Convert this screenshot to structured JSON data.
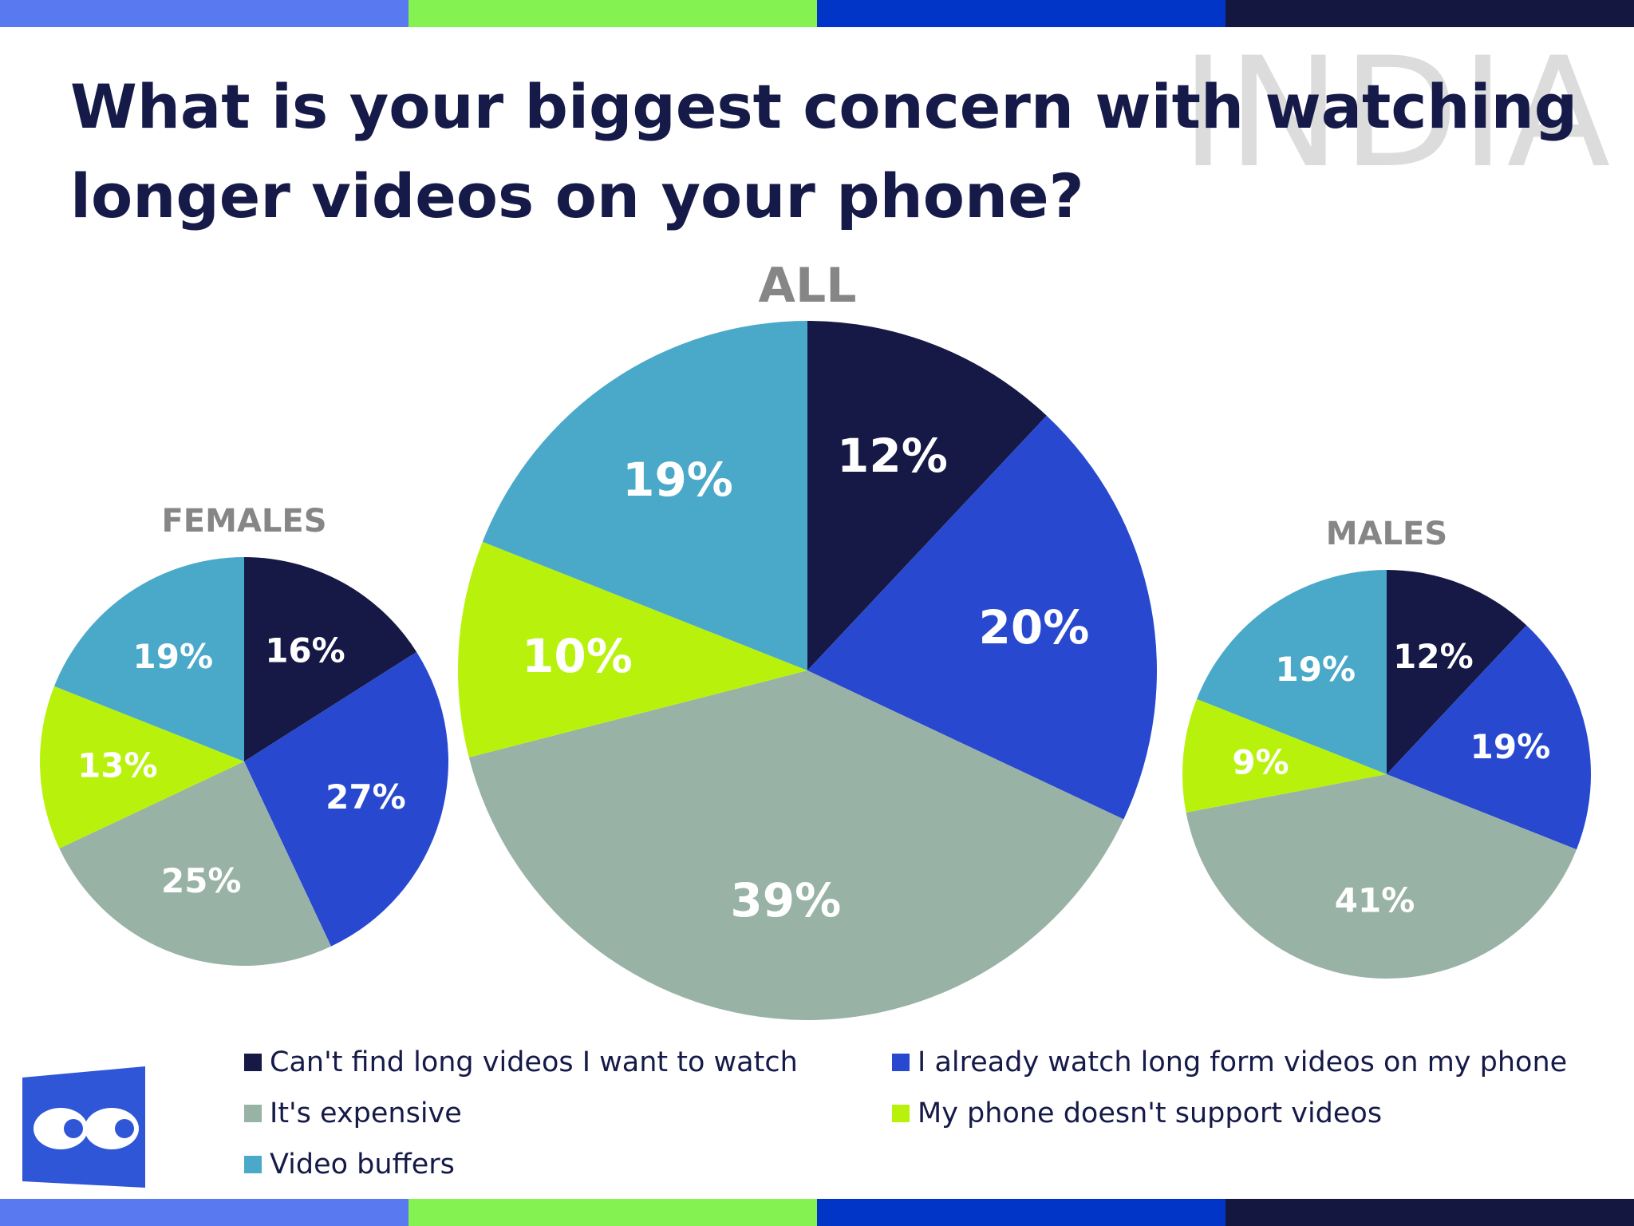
{
  "title": "What is your biggest concern with watching longer videos on your phone?",
  "watermark": "INDIA",
  "colors": {
    "stripes": [
      "#5879f0",
      "#84f251",
      "#0035c8",
      "#141840"
    ],
    "title": "#151a48",
    "panel_title": "#868686"
  },
  "chart_data": [
    {
      "type": "pie",
      "title": "FEMALES",
      "categories": [
        "Can't find long videos I want to watch",
        "I already watch long form videos on my phone",
        "It's expensive",
        "My phone doesn't support videos",
        "Video buffers"
      ],
      "values": [
        16,
        27,
        25,
        13,
        19
      ],
      "labels": [
        "16%",
        "27%",
        "25%",
        "13%",
        "19%"
      ],
      "colors": [
        "#161946",
        "#2849cf",
        "#99b2a6",
        "#b8f20c",
        "#4aa9c9"
      ]
    },
    {
      "type": "pie",
      "title": "ALL",
      "categories": [
        "Can't find long videos I want to watch",
        "I already watch long form videos on my phone",
        "It's expensive",
        "My phone doesn't support videos",
        "Video buffers"
      ],
      "values": [
        12,
        20,
        39,
        10,
        19
      ],
      "labels": [
        "12%",
        "20%",
        "39%",
        "10%",
        "19%"
      ],
      "colors": [
        "#161946",
        "#2849cf",
        "#99b2a6",
        "#b8f20c",
        "#4aa9c9"
      ]
    },
    {
      "type": "pie",
      "title": "MALES",
      "categories": [
        "Can't find long videos I want to watch",
        "I already watch long form videos on my phone",
        "It's expensive",
        "My phone doesn't support videos",
        "Video buffers"
      ],
      "values": [
        12,
        19,
        41,
        9,
        19
      ],
      "labels": [
        "12%",
        "19%",
        "41%",
        "9%",
        "19%"
      ],
      "colors": [
        "#161946",
        "#2849cf",
        "#99b2a6",
        "#b8f20c",
        "#4aa9c9"
      ]
    }
  ],
  "legend": [
    {
      "label": "Can't find long videos I want to watch",
      "color": "#161946"
    },
    {
      "label": "I already watch long form videos on my phone",
      "color": "#2849cf"
    },
    {
      "label": "It's expensive",
      "color": "#99b2a6"
    },
    {
      "label": "My phone doesn't support videos",
      "color": "#b8f20c"
    },
    {
      "label": "Video buffers",
      "color": "#4aa9c9"
    }
  ],
  "logo": {
    "color": "#2f56d6"
  }
}
